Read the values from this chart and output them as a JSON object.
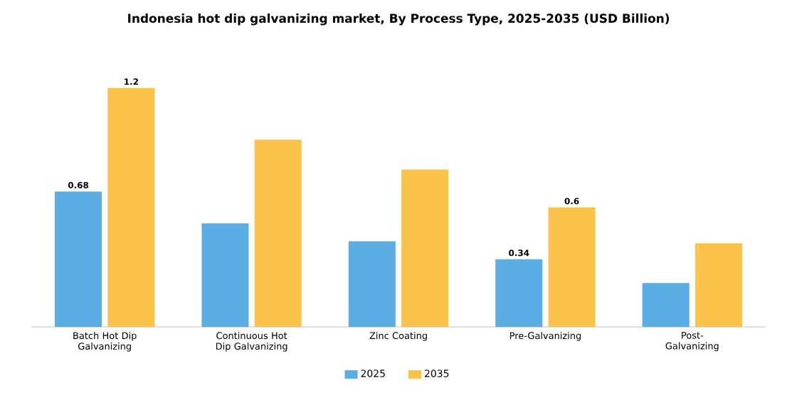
{
  "chart_data": {
    "type": "bar",
    "title": "Indonesia hot dip galvanizing market, By Process Type, 2025-2035 (USD Billion)",
    "categories": [
      "Batch Hot Dip Galvanizing",
      "Continuous Hot Dip Galvanizing",
      "Zinc Coating",
      "Pre-Galvanizing",
      "Post-Galvanizing"
    ],
    "series": [
      {
        "name": "2025",
        "color": "#5aaee3",
        "values": [
          0.68,
          0.52,
          0.43,
          0.34,
          0.22
        ],
        "value_labels": [
          "0.68",
          null,
          null,
          "0.34",
          null
        ]
      },
      {
        "name": "2035",
        "color": "#fbc34a",
        "values": [
          1.2,
          0.94,
          0.79,
          0.6,
          0.42
        ],
        "value_labels": [
          "1.2",
          null,
          null,
          "0.6",
          null
        ]
      }
    ],
    "legend": "bottom",
    "tick_labels": "x"
  }
}
